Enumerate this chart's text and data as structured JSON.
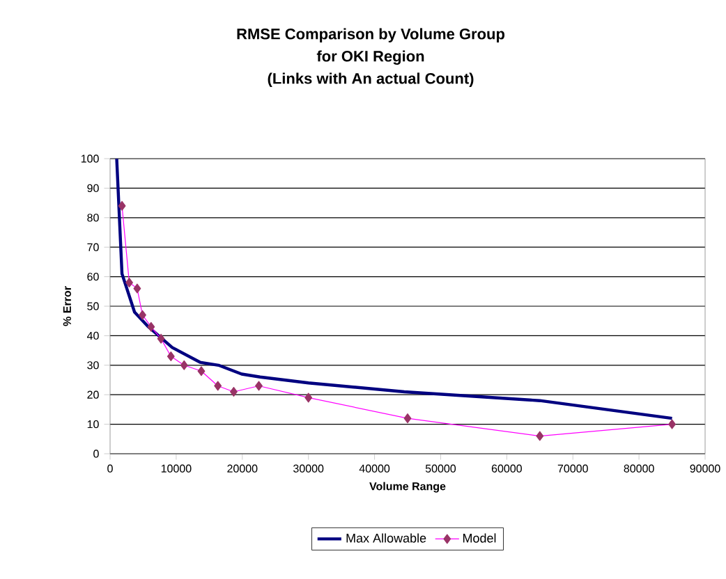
{
  "chart_data": {
    "type": "line",
    "title": "RMSE Comparison by Volume Group\nfor OKI Region\n(Links with An actual Count)",
    "xlabel": "Volume Range",
    "ylabel": "% Error",
    "xlim": [
      0,
      90000
    ],
    "xticks": [
      0,
      10000,
      20000,
      30000,
      40000,
      50000,
      60000,
      70000,
      80000,
      90000
    ],
    "ylim": [
      0,
      100
    ],
    "yticks": [
      0,
      10,
      20,
      30,
      40,
      50,
      60,
      70,
      80,
      90,
      100
    ],
    "grid": "y",
    "legend": "bottom",
    "series": [
      {
        "name": "Max Allowable",
        "color": "#000080",
        "marker": "none",
        "x": [
          1000,
          1800,
          3700,
          5800,
          9400,
          13600,
          16400,
          19900,
          22700,
          30000,
          44500,
          65000,
          85000
        ],
        "values": [
          100,
          61,
          48,
          43,
          36,
          31,
          30,
          27,
          26,
          24,
          21,
          18,
          12
        ]
      },
      {
        "name": "Model",
        "color": "#ff00ff",
        "marker": "diamond",
        "colors": [
          "#993366",
          "#993366",
          "#993366",
          "#993366",
          "#993366",
          "#993366",
          "#993366",
          "#993366",
          "#993366",
          "#993366",
          "#993366",
          "#993366",
          "#993366",
          "#993366",
          "#993366",
          "#993366"
        ],
        "x": [
          1800,
          2900,
          4100,
          4900,
          6200,
          7700,
          9200,
          11200,
          13800,
          16300,
          18700,
          22500,
          30000,
          45000,
          65000,
          85000
        ],
        "values": [
          84,
          58,
          56,
          47,
          43,
          39,
          33,
          30,
          28,
          23,
          21,
          23,
          19,
          12,
          6,
          10
        ]
      }
    ]
  }
}
